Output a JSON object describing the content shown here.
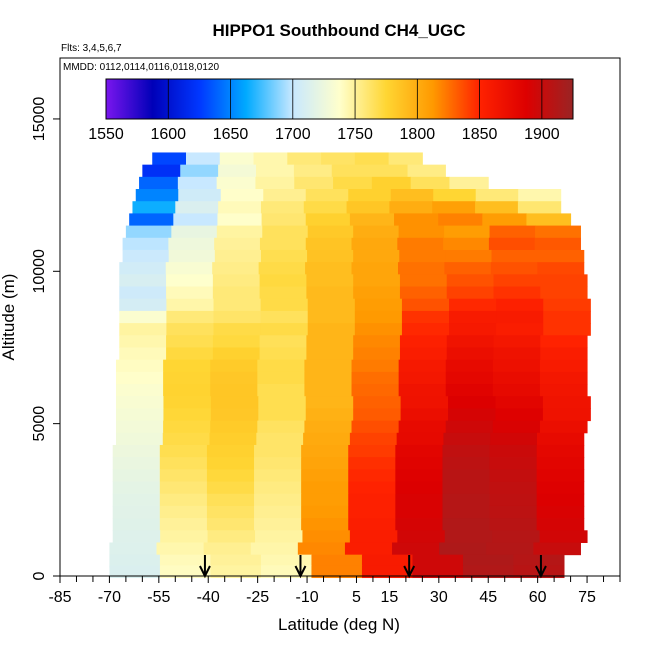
{
  "chart_data": {
    "type": "heatmap",
    "title": "HIPPO1 Southbound CH4_UGC",
    "subtitle_flights": "Flts: 3,4,5,6,7",
    "subtitle_dates": "MMDD: 0112,0114,0116,0118,0120",
    "xlabel": "Latitude (deg N)",
    "ylabel": "Altitude (m)",
    "xlim": [
      -85,
      85
    ],
    "ylim": [
      0,
      17000
    ],
    "x_ticks": [
      -85,
      -70,
      -55,
      -40,
      -25,
      -10,
      5,
      15,
      30,
      45,
      60,
      75
    ],
    "x_ticks_minor": [
      -80,
      -75,
      -65,
      -60,
      -50,
      -45,
      -35,
      -30,
      -20,
      -15,
      -5,
      0,
      10,
      20,
      25,
      35,
      40,
      50,
      55,
      65,
      70,
      80,
      85
    ],
    "y_ticks": [
      0,
      5000,
      10000,
      15000
    ],
    "colorbar": {
      "range": [
        1550,
        1925
      ],
      "ticks": [
        1550,
        1600,
        1650,
        1700,
        1750,
        1800,
        1850,
        1900
      ],
      "colors": [
        "#7a16ee",
        "#0000b8",
        "#0037ff",
        "#00aaff",
        "#c8e8ff",
        "#ffffcc",
        "#ffd633",
        "#ff9900",
        "#ff2200",
        "#dd0000",
        "#9a2424"
      ]
    },
    "arrows_latitude": [
      -41,
      -12,
      21,
      61
    ],
    "rows": [
      {
        "alt": 13700,
        "lat_min": -57,
        "lat_max": 25,
        "values": [
          1630,
          1700,
          1735,
          1745,
          1758,
          1763,
          1768,
          1758
        ]
      },
      {
        "alt": 13300,
        "lat_min": -60,
        "lat_max": 32,
        "values": [
          1620,
          1690,
          1730,
          1745,
          1755,
          1765,
          1765,
          1755
        ]
      },
      {
        "alt": 12900,
        "lat_min": -61,
        "lat_max": 45,
        "values": [
          1640,
          1700,
          1735,
          1748,
          1760,
          1770,
          1778,
          1765,
          1750
        ]
      },
      {
        "alt": 12500,
        "lat_min": -62,
        "lat_max": 67,
        "values": [
          1650,
          1705,
          1738,
          1752,
          1765,
          1778,
          1790,
          1775,
          1758,
          1745
        ]
      },
      {
        "alt": 12100,
        "lat_min": -63,
        "lat_max": 67,
        "values": [
          1665,
          1712,
          1742,
          1758,
          1770,
          1785,
          1800,
          1808,
          1790,
          1760
        ]
      },
      {
        "alt": 11700,
        "lat_min": -64,
        "lat_max": 70,
        "values": [
          1640,
          1700,
          1738,
          1760,
          1778,
          1795,
          1815,
          1820,
          1810,
          1790
        ]
      },
      {
        "alt": 11300,
        "lat_min": -65,
        "lat_max": 73,
        "values": [
          1690,
          1722,
          1748,
          1765,
          1783,
          1800,
          1815,
          1810,
          1830,
          1825
        ]
      },
      {
        "alt": 10900,
        "lat_min": -66,
        "lat_max": 73,
        "values": [
          1698,
          1726,
          1750,
          1765,
          1786,
          1803,
          1822,
          1818,
          1836,
          1833
        ]
      },
      {
        "alt": 10500,
        "lat_min": -66,
        "lat_max": 74,
        "values": [
          1702,
          1728,
          1752,
          1768,
          1787,
          1803,
          1822,
          1822,
          1830,
          1830
        ]
      },
      {
        "alt": 10100,
        "lat_min": -67,
        "lat_max": 74,
        "values": [
          1706,
          1733,
          1754,
          1770,
          1790,
          1805,
          1825,
          1830,
          1835,
          1838
        ]
      },
      {
        "alt": 9700,
        "lat_min": -67,
        "lat_max": 75,
        "values": [
          1710,
          1737,
          1756,
          1772,
          1790,
          1805,
          1825,
          1835,
          1840,
          1840
        ]
      },
      {
        "alt": 9300,
        "lat_min": -67,
        "lat_max": 75,
        "values": [
          1704,
          1742,
          1758,
          1770,
          1792,
          1808,
          1830,
          1840,
          1845,
          1840
        ]
      },
      {
        "alt": 8900,
        "lat_min": -67,
        "lat_max": 76,
        "values": [
          1708,
          1746,
          1758,
          1770,
          1792,
          1810,
          1835,
          1848,
          1852,
          1842
        ]
      },
      {
        "alt": 8500,
        "lat_min": -67,
        "lat_max": 76,
        "values": [
          1735,
          1758,
          1762,
          1765,
          1792,
          1812,
          1845,
          1858,
          1858,
          1845
        ]
      },
      {
        "alt": 8100,
        "lat_min": -67,
        "lat_max": 76,
        "values": [
          1748,
          1765,
          1770,
          1770,
          1795,
          1815,
          1848,
          1860,
          1855,
          1845
        ]
      },
      {
        "alt": 7700,
        "lat_min": -67,
        "lat_max": 75,
        "values": [
          1745,
          1768,
          1772,
          1766,
          1795,
          1818,
          1852,
          1866,
          1862,
          1850
        ]
      },
      {
        "alt": 7300,
        "lat_min": -67,
        "lat_max": 75,
        "values": [
          1742,
          1772,
          1778,
          1768,
          1795,
          1820,
          1855,
          1872,
          1868,
          1856
        ]
      },
      {
        "alt": 6900,
        "lat_min": -68,
        "lat_max": 75,
        "values": [
          1740,
          1775,
          1782,
          1770,
          1795,
          1822,
          1860,
          1876,
          1870,
          1858
        ]
      },
      {
        "alt": 6500,
        "lat_min": -68,
        "lat_max": 75,
        "values": [
          1738,
          1776,
          1784,
          1770,
          1795,
          1826,
          1862,
          1880,
          1874,
          1862
        ]
      },
      {
        "alt": 6100,
        "lat_min": -68,
        "lat_max": 75,
        "values": [
          1735,
          1777,
          1785,
          1768,
          1795,
          1828,
          1866,
          1884,
          1878,
          1864
        ]
      },
      {
        "alt": 5700,
        "lat_min": -68,
        "lat_max": 76,
        "values": [
          1733,
          1776,
          1785,
          1768,
          1795,
          1830,
          1868,
          1888,
          1882,
          1866
        ]
      },
      {
        "alt": 5300,
        "lat_min": -68,
        "lat_max": 76,
        "values": [
          1731,
          1774,
          1784,
          1768,
          1798,
          1832,
          1872,
          1892,
          1886,
          1868
        ]
      },
      {
        "alt": 4900,
        "lat_min": -68,
        "lat_max": 75,
        "values": [
          1729,
          1772,
          1782,
          1764,
          1800,
          1836,
          1876,
          1896,
          1890,
          1872
        ]
      },
      {
        "alt": 4500,
        "lat_min": -68,
        "lat_max": 74,
        "values": [
          1727,
          1770,
          1780,
          1762,
          1802,
          1840,
          1878,
          1900,
          1894,
          1876
        ]
      },
      {
        "alt": 4100,
        "lat_min": -69,
        "lat_max": 74,
        "values": [
          1725,
          1768,
          1778,
          1762,
          1804,
          1842,
          1882,
          1904,
          1898,
          1880
        ]
      },
      {
        "alt": 3700,
        "lat_min": -69,
        "lat_max": 74,
        "values": [
          1723,
          1765,
          1776,
          1760,
          1806,
          1846,
          1884,
          1906,
          1900,
          1882
        ]
      },
      {
        "alt": 3300,
        "lat_min": -69,
        "lat_max": 74,
        "values": [
          1721,
          1762,
          1773,
          1758,
          1808,
          1848,
          1886,
          1908,
          1902,
          1884
        ]
      },
      {
        "alt": 2900,
        "lat_min": -69,
        "lat_max": 74,
        "values": [
          1719,
          1759,
          1770,
          1756,
          1810,
          1850,
          1888,
          1908,
          1904,
          1886
        ]
      },
      {
        "alt": 2500,
        "lat_min": -69,
        "lat_max": 74,
        "values": [
          1718,
          1756,
          1766,
          1754,
          1810,
          1852,
          1890,
          1910,
          1905,
          1888
        ]
      },
      {
        "alt": 2100,
        "lat_min": -69,
        "lat_max": 74,
        "values": [
          1717,
          1753,
          1763,
          1752,
          1812,
          1852,
          1890,
          1910,
          1906,
          1890
        ]
      },
      {
        "alt": 1700,
        "lat_min": -69,
        "lat_max": 74,
        "values": [
          1716,
          1750,
          1760,
          1750,
          1814,
          1854,
          1892,
          1912,
          1908,
          1892
        ]
      },
      {
        "alt": 1300,
        "lat_min": -69,
        "lat_max": 75,
        "values": [
          1715,
          1748,
          1756,
          1748,
          1816,
          1856,
          1894,
          1912,
          1910,
          1894
        ]
      },
      {
        "alt": 900,
        "lat_min": -70,
        "lat_max": 73,
        "values": [
          1714,
          1745,
          1752,
          1746,
          1818,
          1856,
          1896,
          1914,
          1911,
          1900
        ]
      },
      {
        "alt": 500,
        "lat_min": -70,
        "lat_max": 68,
        "values": [
          1713,
          1742,
          1750,
          1744,
          1820,
          1858,
          1896,
          1914,
          1910
        ]
      },
      {
        "alt": 150,
        "lat_min": -70,
        "lat_max": 68,
        "values": [
          1712,
          1740,
          1748,
          1742,
          1820,
          1858,
          1896,
          1912,
          1908
        ]
      }
    ]
  }
}
